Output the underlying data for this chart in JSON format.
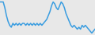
{
  "y_values": [
    8,
    8,
    8,
    5,
    1,
    -2,
    -4,
    -5,
    -3,
    -4,
    -3,
    -4,
    -3,
    -4,
    -3,
    -3,
    -4,
    -3,
    -4,
    -3,
    -4,
    -3,
    -4,
    -3,
    -4,
    -3,
    -4,
    -3,
    -2,
    -1,
    1,
    3,
    6,
    8,
    7,
    5,
    4,
    6,
    8,
    7,
    5,
    2,
    0,
    -2,
    -4,
    -5,
    -4,
    -5,
    -6,
    -5,
    -6,
    -4,
    -5,
    -4,
    -5,
    -6,
    -7,
    -8,
    -7,
    -6
  ],
  "line_color": "#3a9de0",
  "linewidth": 1.1,
  "background_color": "#e8e8e8"
}
